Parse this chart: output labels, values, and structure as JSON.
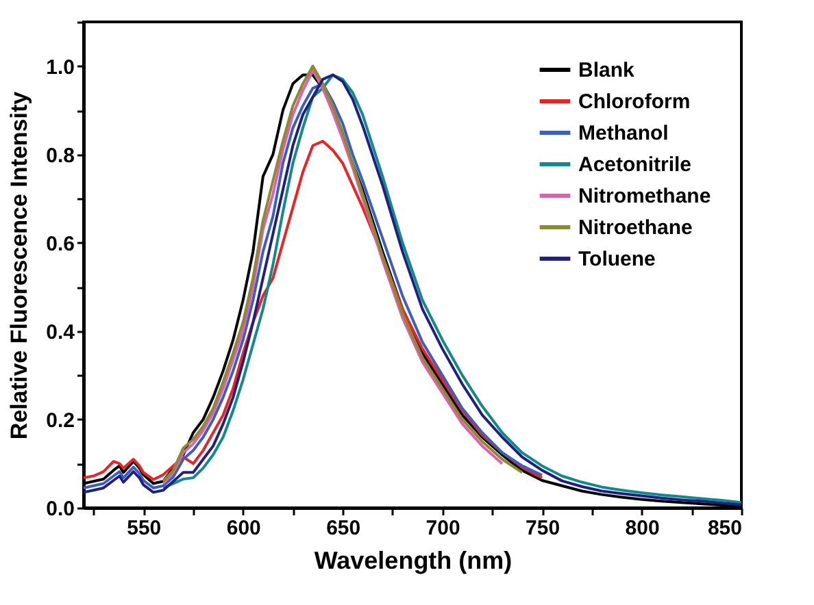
{
  "chart_data": {
    "type": "line",
    "xlabel": "Wavelength (nm)",
    "ylabel": "Relative Fluorescence Intensity",
    "x": [
      520,
      525,
      530,
      535,
      538,
      540,
      545,
      548,
      550,
      555,
      560,
      565,
      570,
      575,
      580,
      585,
      590,
      595,
      600,
      605,
      610,
      615,
      620,
      625,
      630,
      635,
      640,
      645,
      650,
      655,
      660,
      670,
      680,
      690,
      700,
      710,
      720,
      730,
      740,
      750,
      760,
      770,
      780,
      790,
      800,
      810,
      820,
      830,
      840,
      850
    ],
    "series": [
      {
        "name": "Blank",
        "color": "#000000",
        "values": [
          0.055,
          0.06,
          0.065,
          0.085,
          0.095,
          0.08,
          0.105,
          0.09,
          0.075,
          0.055,
          0.06,
          0.09,
          0.12,
          0.17,
          0.2,
          0.25,
          0.31,
          0.38,
          0.47,
          0.58,
          0.75,
          0.8,
          0.9,
          0.96,
          0.98,
          0.98,
          0.95,
          0.9,
          0.84,
          0.78,
          0.72,
          0.58,
          0.45,
          0.35,
          0.28,
          0.21,
          0.16,
          0.12,
          0.085,
          0.062,
          0.05,
          0.038,
          0.03,
          0.024,
          0.019,
          0.015,
          0.012,
          0.009,
          0.006,
          0.002
        ]
      },
      {
        "name": "Chloroform",
        "color": "#ee2222",
        "values": [
          0.068,
          0.072,
          0.082,
          0.105,
          0.1,
          0.09,
          0.11,
          0.095,
          0.08,
          0.064,
          0.075,
          0.095,
          0.115,
          0.1,
          0.13,
          0.17,
          0.21,
          0.27,
          0.35,
          0.42,
          0.48,
          0.52,
          0.6,
          0.68,
          0.76,
          0.82,
          0.83,
          0.81,
          0.78,
          0.73,
          0.68,
          0.57,
          0.45,
          0.36,
          0.29,
          0.22,
          0.165,
          0.125,
          0.092,
          0.068,
          null,
          null,
          null,
          null,
          null,
          null,
          null,
          null,
          null,
          null
        ]
      },
      {
        "name": "Methanol",
        "color": "#3a5fc0",
        "values": [
          0.045,
          0.05,
          0.055,
          0.072,
          0.082,
          0.068,
          0.092,
          0.078,
          0.062,
          0.045,
          0.05,
          0.07,
          0.11,
          0.13,
          0.16,
          0.2,
          0.25,
          0.31,
          0.38,
          0.47,
          0.58,
          0.66,
          0.78,
          0.86,
          0.91,
          0.95,
          0.96,
          0.92,
          0.87,
          0.8,
          0.74,
          0.61,
          0.48,
          0.375,
          0.3,
          0.225,
          0.17,
          0.125,
          0.095,
          0.074,
          null,
          null,
          null,
          null,
          null,
          null,
          null,
          null,
          null,
          null
        ]
      },
      {
        "name": "Acetonitrile",
        "color": "#108a8a",
        "values": [
          null,
          null,
          null,
          null,
          null,
          null,
          null,
          null,
          null,
          null,
          0.045,
          0.055,
          0.065,
          0.068,
          0.09,
          0.12,
          0.16,
          0.22,
          0.29,
          0.37,
          0.45,
          0.55,
          0.67,
          0.78,
          0.86,
          0.93,
          0.95,
          0.98,
          0.97,
          0.94,
          0.89,
          0.75,
          0.6,
          0.47,
          0.38,
          0.3,
          0.23,
          0.17,
          0.125,
          0.095,
          0.072,
          0.058,
          0.047,
          0.04,
          0.034,
          0.029,
          0.025,
          0.021,
          0.017,
          0.012
        ]
      },
      {
        "name": "Nitromethane",
        "color": "#e060b0",
        "values": [
          null,
          null,
          null,
          null,
          null,
          null,
          null,
          null,
          null,
          null,
          0.055,
          0.08,
          0.125,
          0.145,
          0.175,
          0.215,
          0.27,
          0.335,
          0.4,
          0.5,
          0.63,
          0.71,
          0.81,
          0.89,
          0.945,
          0.99,
          0.95,
          0.895,
          0.835,
          0.77,
          0.7,
          0.56,
          0.43,
          0.33,
          0.26,
          0.19,
          0.14,
          0.1,
          null,
          null,
          null,
          null,
          null,
          null,
          null,
          null,
          null,
          null,
          null,
          null
        ]
      },
      {
        "name": "Nitroethane",
        "color": "#8a8a30",
        "values": [
          null,
          null,
          null,
          null,
          null,
          null,
          null,
          null,
          null,
          null,
          0.06,
          0.085,
          0.135,
          0.155,
          0.185,
          0.225,
          0.285,
          0.35,
          0.42,
          0.52,
          0.65,
          0.74,
          0.83,
          0.91,
          0.96,
          1.0,
          0.96,
          0.91,
          0.85,
          0.78,
          0.71,
          0.57,
          0.44,
          0.34,
          0.27,
          0.2,
          0.15,
          0.11,
          0.08,
          null,
          null,
          null,
          null,
          null,
          null,
          null,
          null,
          null,
          null,
          null
        ]
      },
      {
        "name": "Toluene",
        "color": "#202080",
        "values": [
          0.035,
          0.04,
          0.045,
          0.062,
          0.072,
          0.058,
          0.082,
          0.068,
          0.052,
          0.035,
          0.04,
          0.06,
          0.08,
          0.08,
          0.11,
          0.14,
          0.19,
          0.25,
          0.33,
          0.42,
          0.52,
          0.62,
          0.72,
          0.82,
          0.89,
          0.93,
          0.97,
          0.98,
          0.965,
          0.925,
          0.865,
          0.73,
          0.58,
          0.45,
          0.36,
          0.28,
          0.21,
          0.16,
          0.115,
          0.085,
          0.061,
          0.048,
          0.038,
          0.032,
          0.027,
          0.022,
          0.018,
          0.015,
          0.011,
          0.007
        ]
      }
    ],
    "xlim": [
      520,
      850
    ],
    "xticks": [
      {
        "value": 525,
        "label": null
      },
      550,
      {
        "value": 575,
        "label": null
      },
      600,
      {
        "value": 625,
        "label": null
      },
      650,
      {
        "value": 675,
        "label": null
      },
      700,
      {
        "value": 725,
        "label": null
      },
      750,
      {
        "value": 775,
        "label": null
      },
      800,
      {
        "value": 825,
        "label": null
      },
      850
    ],
    "ylim": [
      0,
      1.1
    ],
    "yticks": [
      {
        "value": 0,
        "label": "0.0"
      },
      {
        "value": 0.1,
        "label": null
      },
      0.2,
      {
        "value": 0.3,
        "label": null
      },
      0.4,
      {
        "value": 0.5,
        "label": null
      },
      0.6,
      {
        "value": 0.7,
        "label": null
      },
      0.8,
      {
        "value": 0.9,
        "label": null
      },
      {
        "value": 1,
        "label": "1.0"
      },
      {
        "value": 1.1,
        "label": null
      }
    ],
    "grid": false,
    "legend": "top right",
    "line_style": "solid"
  }
}
